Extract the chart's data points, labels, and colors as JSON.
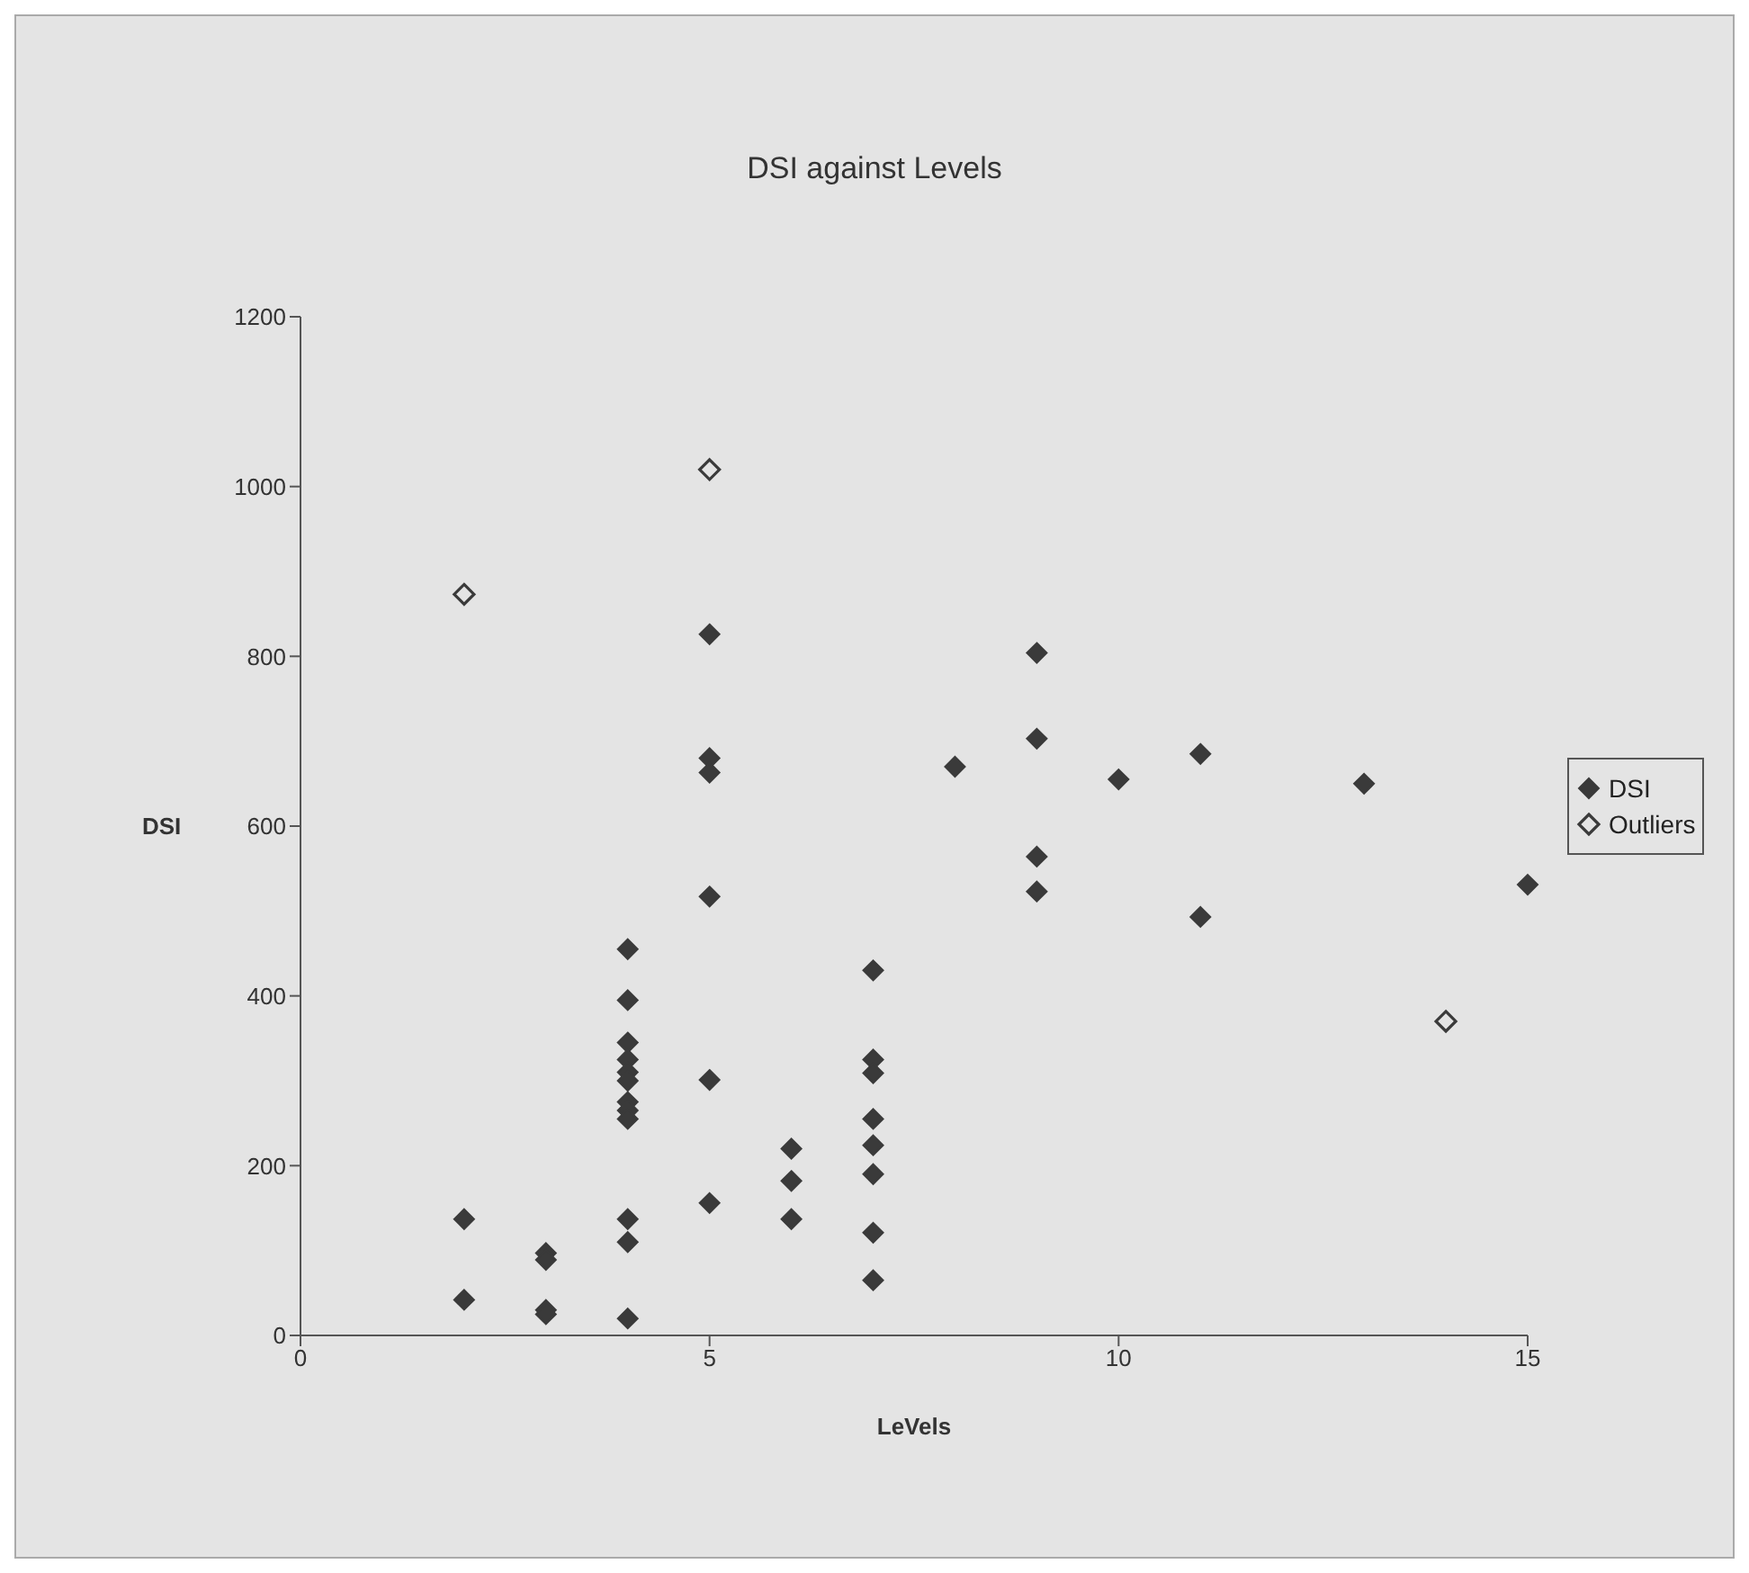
{
  "chart_data": {
    "type": "scatter",
    "title": "DSI against Levels",
    "xlabel": "LeVels",
    "ylabel": "DSI",
    "xlim": [
      0,
      15
    ],
    "xticks": [
      0,
      5,
      10,
      15
    ],
    "ylim": [
      0,
      1200
    ],
    "yticks": [
      0,
      200,
      400,
      600,
      800,
      1000,
      1200
    ],
    "legend": "right",
    "marker": "diamond",
    "series": [
      {
        "name": "DSI",
        "color": "#3a3a3a",
        "x": [
          2,
          2,
          3,
          3,
          3,
          3,
          4,
          4,
          4,
          4,
          4,
          4,
          4,
          4,
          4,
          4,
          4,
          4,
          5,
          5,
          5,
          5,
          5,
          5,
          6,
          6,
          6,
          7,
          7,
          7,
          7,
          7,
          7,
          7,
          7,
          8,
          9,
          9,
          9,
          9,
          10,
          11,
          11,
          13,
          15
        ],
        "values": [
          137,
          42,
          97,
          89,
          30,
          25,
          455,
          395,
          345,
          325,
          310,
          300,
          275,
          265,
          255,
          137,
          110,
          20,
          826,
          680,
          663,
          517,
          301,
          156,
          220,
          182,
          137,
          430,
          325,
          309,
          255,
          224,
          190,
          121,
          65,
          670,
          804,
          703,
          564,
          523,
          655,
          685,
          493,
          650,
          531
        ]
      },
      {
        "name": "Outliers",
        "color": "#3a3a3a",
        "x": [
          2,
          5,
          14
        ],
        "values": [
          873,
          1020,
          370
        ]
      }
    ]
  }
}
